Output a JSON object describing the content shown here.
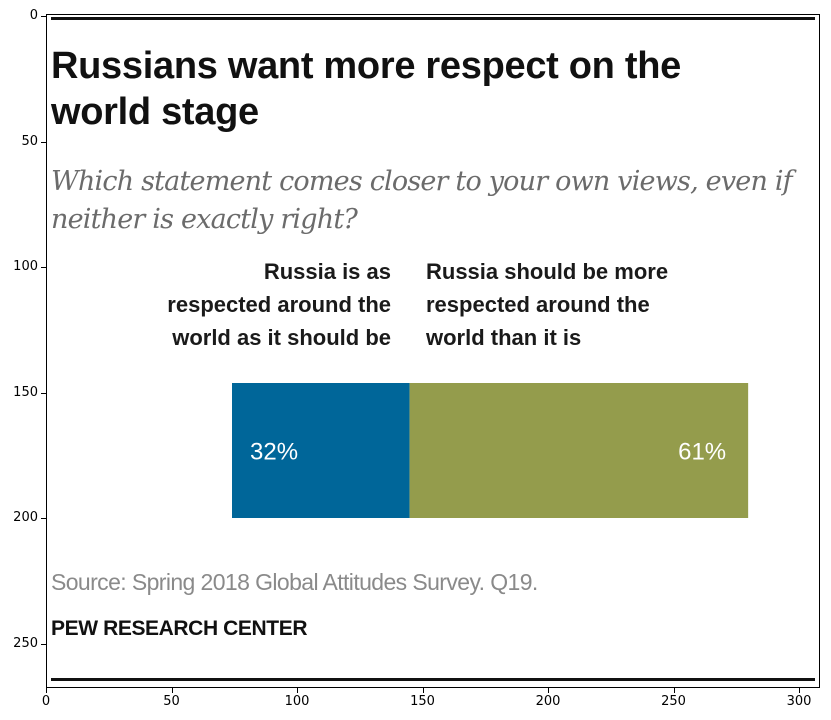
{
  "header": {
    "title": "Russians want more respect on the world stage",
    "subtitle": "Which statement comes closer to your own views, even if neither is exactly right?"
  },
  "chart_data": {
    "type": "bar",
    "orientation": "horizontal-stacked",
    "categories": [
      "Russia is as respected around the world as it should be",
      "Russia should be more respected around the world than it is"
    ],
    "values": [
      32,
      61
    ],
    "value_labels": [
      "32%",
      "61%"
    ],
    "colors": [
      "#006699",
      "#949c4c"
    ]
  },
  "labels": {
    "left": "Russia is as\nrespected around the\nworld as it should be",
    "right": "Russia should be more\nrespected around the\nworld than it is"
  },
  "footer": {
    "source": "Source: Spring 2018 Global Attitudes Survey. Q19.",
    "brand": "PEW RESEARCH CENTER"
  },
  "axes": {
    "x_ticks": [
      "0",
      "50",
      "100",
      "150",
      "200",
      "250",
      "300"
    ],
    "y_ticks": [
      "0",
      "50",
      "100",
      "150",
      "200",
      "250"
    ]
  }
}
